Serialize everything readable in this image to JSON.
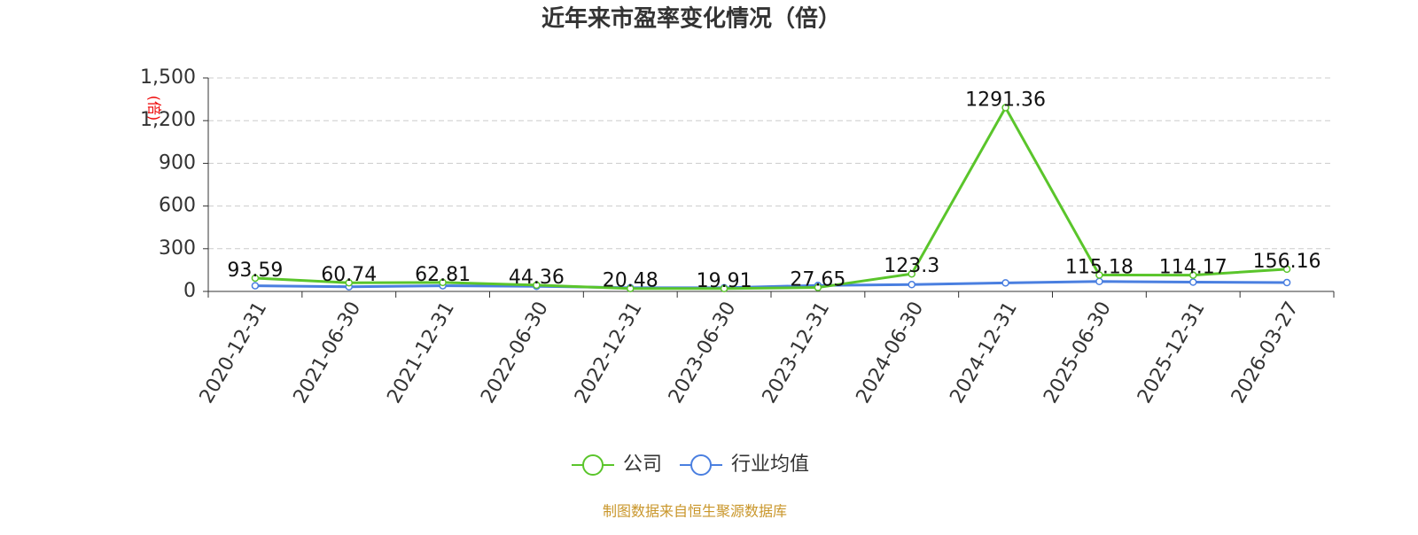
{
  "chart_data": {
    "type": "line",
    "title": "近年来市盈率变化情况（倍）",
    "y_label": "(倍)",
    "categories": [
      "2020-12-31",
      "2021-06-30",
      "2021-12-31",
      "2022-06-30",
      "2022-12-31",
      "2023-06-30",
      "2023-12-31",
      "2024-06-30",
      "2024-12-31",
      "2025-06-30",
      "2025-12-31",
      "2026-03-27"
    ],
    "series": [
      {
        "name": "公司",
        "color": "#5ac52b",
        "show_value_labels": true,
        "values": [
          93.59,
          60.74,
          62.81,
          44.36,
          20.48,
          19.91,
          27.65,
          123.3,
          1291.36,
          115.18,
          114.17,
          156.16
        ]
      },
      {
        "name": "行业均值",
        "color": "#4a7fe0",
        "show_value_labels": false,
        "values": [
          40,
          33,
          40,
          36,
          26,
          26,
          42,
          48,
          60,
          70,
          65,
          62
        ]
      }
    ],
    "ylim": [
      0,
      1500
    ],
    "yticks": [
      0,
      300,
      600,
      900,
      {
        "value": 1200,
        "label": "1,200"
      },
      {
        "value": 1500,
        "label": "1,500"
      }
    ],
    "grid": true,
    "legend": "bottom",
    "source": "制图数据来自恒生聚源数据库"
  }
}
